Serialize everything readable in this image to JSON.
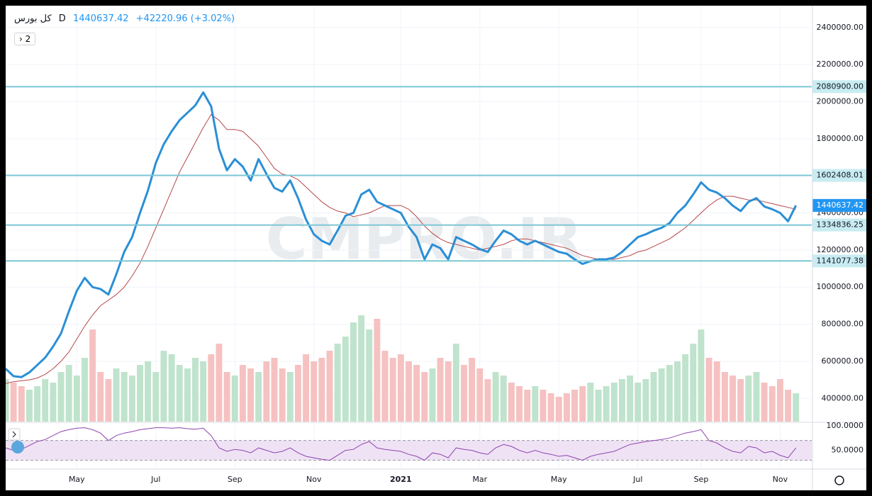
{
  "chart_data": {
    "type": "line",
    "title": "کل بورس",
    "interval": "D",
    "last_price": {
      "value": 1440637.42,
      "label": "1440637.42"
    },
    "change": "+42220.96 (+3.02%)",
    "pane_count": "2",
    "watermark": "CMPRO.IR",
    "grid": true,
    "xlim": [
      0,
      102
    ],
    "xticks": [
      {
        "value": 9,
        "label": "May"
      },
      {
        "value": 19,
        "label": "Jul"
      },
      {
        "value": 29,
        "label": "Sep"
      },
      {
        "value": 39,
        "label": "Nov"
      },
      {
        "value": 50,
        "label": "2021",
        "bold": true
      },
      {
        "value": 60,
        "label": "Mar"
      },
      {
        "value": 70,
        "label": "May"
      },
      {
        "value": 80,
        "label": "Jul"
      },
      {
        "value": 88,
        "label": "Sep"
      },
      {
        "value": 98,
        "label": "Nov"
      }
    ],
    "ylim": [
      275000,
      2510000
    ],
    "yticks": [
      {
        "value": 400000,
        "label": "400000.00"
      },
      {
        "value": 600000,
        "label": "600000.00"
      },
      {
        "value": 800000,
        "label": "800000.00"
      },
      {
        "value": 1000000,
        "label": "1000000.00"
      },
      {
        "value": 1200000,
        "label": "1200000.00"
      },
      {
        "value": 1400000,
        "label": "1400000.00"
      },
      {
        "value": 1600000,
        "label": "1600000.00"
      },
      {
        "value": 1800000,
        "label": "1800000.00"
      },
      {
        "value": 2000000,
        "label": "2000000.00"
      },
      {
        "value": 2200000,
        "label": "2200000.00"
      },
      {
        "value": 2400000,
        "label": "2400000.00"
      }
    ],
    "levels": [
      {
        "value": 2080900,
        "label": "2080900.00"
      },
      {
        "value": 1602408.01,
        "label": "1602408.01"
      },
      {
        "value": 1334836.25,
        "label": "1334836.25"
      },
      {
        "value": 1141077.38,
        "label": "1141077.38"
      }
    ],
    "level_color": "#7cc7d6",
    "series": [
      {
        "color": "#2a8fd6",
        "width": 3,
        "values": [
          560000,
          520000,
          515000,
          540000,
          580000,
          620000,
          680000,
          750000,
          870000,
          980000,
          1050000,
          1000000,
          990000,
          960000,
          1070000,
          1190000,
          1270000,
          1400000,
          1520000,
          1670000,
          1770000,
          1840000,
          1900000,
          1940000,
          1980000,
          2050000,
          1975000,
          1745000,
          1630000,
          1690000,
          1650000,
          1575000,
          1690000,
          1610000,
          1535000,
          1515000,
          1575000,
          1480000,
          1365000,
          1285000,
          1250000,
          1230000,
          1305000,
          1385000,
          1400000,
          1500000,
          1525000,
          1460000,
          1440000,
          1420000,
          1400000,
          1325000,
          1270000,
          1150000,
          1230000,
          1210000,
          1150000,
          1270000,
          1250000,
          1230000,
          1205000,
          1190000,
          1250000,
          1305000,
          1285000,
          1250000,
          1230000,
          1250000,
          1230000,
          1210000,
          1190000,
          1180000,
          1150000,
          1125000,
          1140000,
          1150000,
          1150000,
          1160000,
          1190000,
          1230000,
          1270000,
          1285000,
          1305000,
          1320000,
          1345000,
          1400000,
          1440000,
          1500000,
          1565000,
          1525000,
          1510000,
          1480000,
          1440000,
          1410000,
          1460000,
          1480000,
          1435000,
          1420000,
          1400000,
          1355000,
          1440637.42
        ]
      },
      {
        "color": "#b5474a",
        "width": 1,
        "values": [
          480000,
          490000,
          495000,
          500000,
          510000,
          530000,
          560000,
          600000,
          650000,
          720000,
          790000,
          850000,
          900000,
          930000,
          960000,
          1000000,
          1060000,
          1130000,
          1220000,
          1320000,
          1420000,
          1520000,
          1620000,
          1700000,
          1780000,
          1860000,
          1930000,
          1900000,
          1850000,
          1850000,
          1840000,
          1800000,
          1760000,
          1700000,
          1640000,
          1610000,
          1600000,
          1580000,
          1540000,
          1500000,
          1460000,
          1430000,
          1410000,
          1400000,
          1380000,
          1390000,
          1400000,
          1420000,
          1440000,
          1440000,
          1440000,
          1420000,
          1380000,
          1330000,
          1290000,
          1260000,
          1240000,
          1230000,
          1220000,
          1210000,
          1200000,
          1210000,
          1220000,
          1230000,
          1250000,
          1260000,
          1260000,
          1250000,
          1240000,
          1230000,
          1220000,
          1210000,
          1190000,
          1170000,
          1160000,
          1150000,
          1150000,
          1150000,
          1160000,
          1170000,
          1190000,
          1200000,
          1220000,
          1240000,
          1260000,
          1290000,
          1320000,
          1360000,
          1400000,
          1440000,
          1470000,
          1490000,
          1490000,
          1480000,
          1470000,
          1470000,
          1460000,
          1450000,
          1440000,
          1430000,
          1420000
        ]
      }
    ],
    "volume": {
      "up_color": "#bfe3cc",
      "down_color": "#f6c1c1",
      "ylim": [
        0,
        300
      ],
      "values": [
        60,
        55,
        50,
        45,
        50,
        60,
        55,
        70,
        80,
        65,
        90,
        130,
        70,
        60,
        75,
        70,
        65,
        80,
        85,
        70,
        100,
        95,
        80,
        75,
        90,
        85,
        95,
        110,
        70,
        65,
        80,
        75,
        70,
        85,
        90,
        75,
        70,
        80,
        95,
        85,
        90,
        100,
        110,
        120,
        140,
        150,
        130,
        145,
        100,
        90,
        95,
        85,
        80,
        70,
        75,
        90,
        85,
        110,
        80,
        90,
        75,
        60,
        70,
        65,
        55,
        50,
        45,
        50,
        45,
        40,
        35,
        40,
        45,
        50,
        55,
        45,
        50,
        55,
        60,
        65,
        55,
        60,
        70,
        75,
        80,
        85,
        95,
        110,
        130,
        90,
        85,
        70,
        65,
        60,
        65,
        70,
        55,
        50,
        60,
        45,
        40
      ]
    },
    "rsi": {
      "color": "#8e44ad",
      "band_color": "#efe2f5",
      "ylim": [
        15,
        104
      ],
      "bands": [
        30,
        70
      ],
      "yticks": [
        {
          "value": 100,
          "label": "100.0000"
        },
        {
          "value": 50,
          "label": "50.0000"
        }
      ],
      "values": [
        55,
        50,
        52,
        60,
        68,
        72,
        80,
        88,
        92,
        95,
        96,
        92,
        85,
        70,
        80,
        85,
        88,
        92,
        94,
        96,
        96,
        95,
        96,
        94,
        93,
        95,
        80,
        55,
        48,
        52,
        50,
        45,
        55,
        50,
        45,
        48,
        55,
        45,
        38,
        35,
        32,
        30,
        40,
        50,
        52,
        62,
        68,
        55,
        52,
        50,
        48,
        42,
        38,
        30,
        45,
        42,
        35,
        55,
        52,
        50,
        45,
        42,
        55,
        62,
        58,
        50,
        45,
        50,
        45,
        42,
        38,
        40,
        35,
        30,
        38,
        42,
        45,
        48,
        55,
        62,
        65,
        68,
        70,
        72,
        75,
        80,
        85,
        88,
        92,
        70,
        65,
        55,
        48,
        45,
        58,
        55,
        45,
        48,
        40,
        35,
        55
      ]
    }
  }
}
